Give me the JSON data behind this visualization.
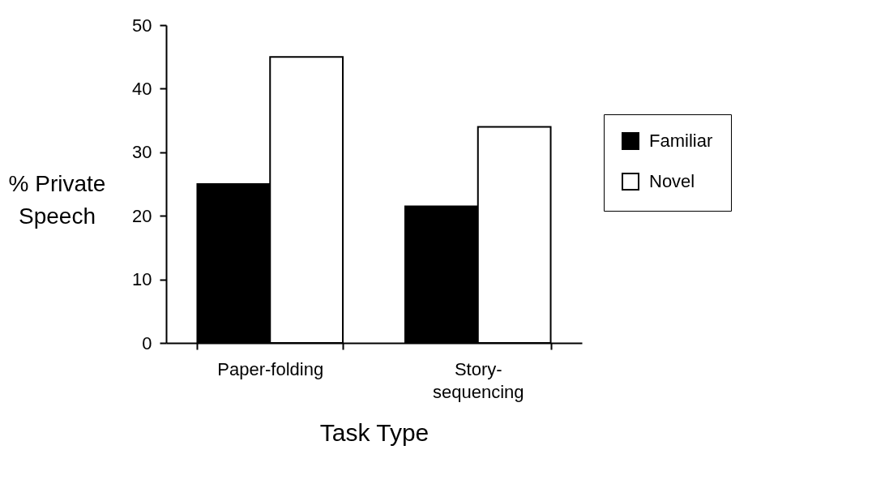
{
  "chart_data": {
    "type": "bar",
    "xlabel": "Task Type",
    "ylabel": "% Private\nSpeech",
    "categories": [
      "Paper-folding",
      "Story-\nsequencing"
    ],
    "series": [
      {
        "name": "Familiar",
        "color": "#000000",
        "values": [
          25,
          21.5
        ]
      },
      {
        "name": "Novel",
        "color": "#ffffff",
        "values": [
          45,
          34
        ]
      }
    ],
    "ylim": [
      0,
      50
    ],
    "yticks": [
      0,
      10,
      20,
      30,
      40,
      50
    ],
    "grid": false,
    "legend": "right"
  }
}
